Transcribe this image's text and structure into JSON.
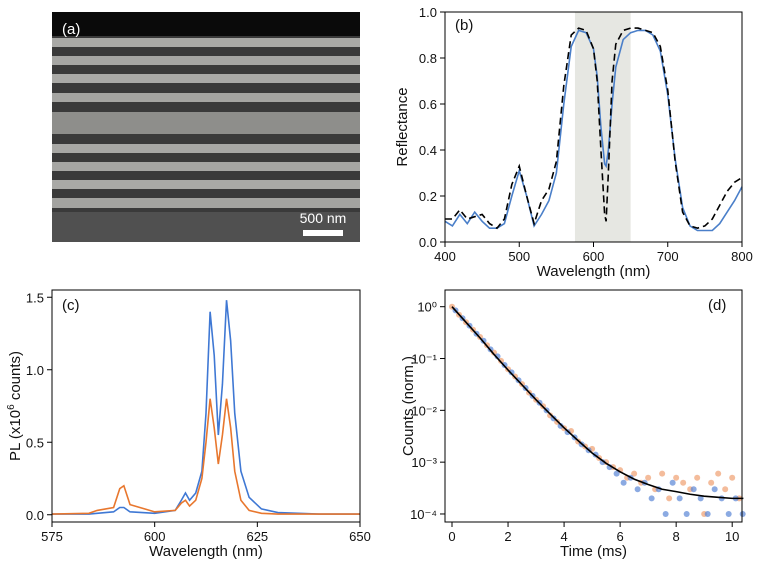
{
  "chart_data": [
    {
      "type": "image",
      "panel_label": "(a)",
      "scale_bar_label": "500 nm"
    },
    {
      "type": "line",
      "panel_label": "(b)",
      "xlabel": "Wavelength (nm)",
      "ylabel": "Reflectance",
      "xlim": [
        400,
        800
      ],
      "ylim": [
        0,
        1
      ],
      "xticks": [
        400,
        500,
        600,
        700,
        800
      ],
      "yticks": [
        {
          "value": 0,
          "label": "0.0"
        },
        0.2,
        0.4,
        0.6,
        0.8,
        {
          "value": 1,
          "label": "1.0"
        }
      ],
      "shaded_span": [
        575,
        650
      ],
      "span_color": "#e6e7e2",
      "x": [
        400,
        410,
        420,
        430,
        440,
        450,
        460,
        470,
        480,
        490,
        500,
        510,
        520,
        530,
        540,
        550,
        560,
        570,
        580,
        590,
        600,
        605,
        610,
        615,
        617,
        620,
        625,
        630,
        640,
        650,
        660,
        670,
        680,
        690,
        700,
        710,
        720,
        730,
        740,
        750,
        760,
        770,
        780,
        790,
        800
      ],
      "series": [
        {
          "color": "#4a7fc9",
          "dash": false,
          "values": [
            0.09,
            0.07,
            0.12,
            0.08,
            0.13,
            0.09,
            0.06,
            0.06,
            0.08,
            0.2,
            0.31,
            0.2,
            0.07,
            0.12,
            0.18,
            0.3,
            0.6,
            0.85,
            0.92,
            0.91,
            0.84,
            0.72,
            0.5,
            0.34,
            0.33,
            0.4,
            0.6,
            0.76,
            0.88,
            0.91,
            0.92,
            0.92,
            0.9,
            0.83,
            0.64,
            0.36,
            0.15,
            0.07,
            0.05,
            0.05,
            0.05,
            0.08,
            0.13,
            0.18,
            0.24
          ]
        },
        {
          "color": "#000000",
          "dash": true,
          "values": [
            0.1,
            0.1,
            0.14,
            0.1,
            0.11,
            0.12,
            0.08,
            0.06,
            0.1,
            0.25,
            0.33,
            0.2,
            0.08,
            0.18,
            0.23,
            0.35,
            0.68,
            0.9,
            0.93,
            0.92,
            0.84,
            0.7,
            0.4,
            0.12,
            0.09,
            0.3,
            0.7,
            0.86,
            0.92,
            0.93,
            0.93,
            0.92,
            0.91,
            0.85,
            0.66,
            0.35,
            0.13,
            0.07,
            0.06,
            0.07,
            0.1,
            0.16,
            0.22,
            0.26,
            0.28
          ]
        }
      ]
    },
    {
      "type": "line",
      "panel_label": "(c)",
      "xlabel": "Wavelength (nm)",
      "ylabel": {
        "text": "PL (x10",
        "superscript": "6",
        "suffix": " counts)"
      },
      "xlim": [
        575,
        650
      ],
      "ylim": [
        -0.05,
        1.55
      ],
      "xticks": [
        575,
        600,
        625,
        650
      ],
      "yticks": [
        {
          "value": 0,
          "label": "0.0"
        },
        0.5,
        {
          "value": 1,
          "label": "1.0"
        },
        1.5
      ],
      "x": [
        575,
        584,
        586,
        590,
        591.5,
        592.5,
        594,
        600,
        605,
        606.5,
        607.5,
        608.5,
        610,
        611.5,
        612.5,
        613.5,
        614.5,
        615.5,
        616.5,
        617.5,
        618.5,
        619.5,
        621,
        623,
        626,
        630,
        640,
        650
      ],
      "series": [
        {
          "color": "#3f78d4",
          "dash": false,
          "values": [
            0.005,
            0.005,
            0.01,
            0.02,
            0.05,
            0.05,
            0.02,
            0.01,
            0.03,
            0.1,
            0.15,
            0.1,
            0.15,
            0.3,
            0.7,
            1.4,
            1.1,
            0.55,
            0.9,
            1.48,
            1.2,
            0.7,
            0.3,
            0.12,
            0.04,
            0.015,
            0.005,
            0.005
          ]
        },
        {
          "color": "#e8772e",
          "dash": false,
          "values": [
            0.005,
            0.01,
            0.03,
            0.05,
            0.18,
            0.2,
            0.07,
            0.02,
            0.03,
            0.08,
            0.1,
            0.06,
            0.1,
            0.25,
            0.5,
            0.8,
            0.6,
            0.35,
            0.55,
            0.8,
            0.6,
            0.3,
            0.1,
            0.03,
            0.01,
            0.005,
            0.005,
            0.005
          ]
        }
      ]
    },
    {
      "type": "scatter",
      "panel_label": "(d)",
      "xlabel": "Time (ms)",
      "ylabel": "Counts (norm.)",
      "xlim": [
        -0.25,
        10.35
      ],
      "ylim": [
        7e-05,
        2.1
      ],
      "yscale": "log",
      "xticks": [
        0,
        2,
        4,
        6,
        8,
        10
      ],
      "yticks": [
        {
          "value": 1,
          "label": "10⁰"
        },
        {
          "value": 0.1,
          "label": "10⁻¹"
        },
        {
          "value": 0.01,
          "label": "10⁻²"
        },
        {
          "value": 0.001,
          "label": "10⁻³"
        },
        {
          "value": 0.0001,
          "label": "10⁻⁴"
        }
      ],
      "series": [
        {
          "color": "#f0a070",
          "style": "points",
          "x": [
            0,
            0.25,
            0.5,
            0.75,
            1,
            1.25,
            1.5,
            1.75,
            2,
            2.25,
            2.5,
            2.75,
            3,
            3.25,
            3.5,
            3.75,
            4,
            4.25,
            4.5,
            4.75,
            5,
            5.25,
            5.5,
            5.75,
            6,
            6.25,
            6.5,
            6.75,
            7,
            7.25,
            7.5,
            7.75,
            8,
            8.25,
            8.5,
            8.75,
            9,
            9.25,
            9.5,
            9.75,
            10,
            10.25
          ],
          "values": [
            1,
            0.7,
            0.5,
            0.36,
            0.26,
            0.18,
            0.13,
            0.09,
            0.062,
            0.045,
            0.032,
            0.022,
            0.016,
            0.012,
            0.008,
            0.006,
            0.0045,
            0.004,
            0.0025,
            0.002,
            0.0018,
            0.0012,
            0.001,
            0.0008,
            0.0007,
            0.0005,
            0.0006,
            0.0004,
            0.0005,
            0.0003,
            0.0006,
            0.0002,
            0.0005,
            0.0004,
            0.0003,
            0.0005,
            0.0001,
            0.0004,
            0.0006,
            0.0003,
            0.0005,
            0.0002
          ]
        },
        {
          "color": "#5a86d6",
          "style": "points",
          "x": [
            0.125,
            0.375,
            0.625,
            0.875,
            1.125,
            1.375,
            1.625,
            1.875,
            2.125,
            2.375,
            2.625,
            2.875,
            3.125,
            3.375,
            3.625,
            3.875,
            4.125,
            4.375,
            4.625,
            4.875,
            5.125,
            5.375,
            5.625,
            5.875,
            6.125,
            6.375,
            6.625,
            6.875,
            7.125,
            7.375,
            7.625,
            7.875,
            8.125,
            8.375,
            8.625,
            8.875,
            9.125,
            9.375,
            9.625,
            9.875,
            10.125,
            10.375
          ],
          "values": [
            0.85,
            0.6,
            0.43,
            0.3,
            0.22,
            0.15,
            0.11,
            0.075,
            0.054,
            0.038,
            0.027,
            0.019,
            0.014,
            0.01,
            0.007,
            0.005,
            0.0038,
            0.003,
            0.0022,
            0.0017,
            0.0014,
            0.001,
            0.0008,
            0.0006,
            0.0004,
            0.0005,
            0.0003,
            0.0004,
            0.0002,
            0.0003,
            0.0001,
            0.0004,
            0.0002,
            0.0001,
            0.0003,
            0.0002,
            0.0001,
            0.0003,
            0.0002,
            0.0001,
            0.0002,
            0.0001
          ]
        },
        {
          "color": "#000000",
          "style": "line",
          "x": [
            0,
            0.5,
            1,
            1.5,
            2,
            2.5,
            3,
            3.5,
            4,
            4.5,
            5,
            5.5,
            6,
            6.5,
            7,
            7.5,
            8,
            8.5,
            9,
            9.5,
            10,
            10.4
          ],
          "values": [
            1,
            0.5,
            0.25,
            0.12,
            0.06,
            0.031,
            0.016,
            0.0085,
            0.0046,
            0.0026,
            0.0015,
            0.00095,
            0.00065,
            0.00047,
            0.00037,
            0.0003,
            0.00027,
            0.00024,
            0.00022,
            0.00021,
            0.0002,
            0.0002
          ]
        }
      ]
    }
  ]
}
